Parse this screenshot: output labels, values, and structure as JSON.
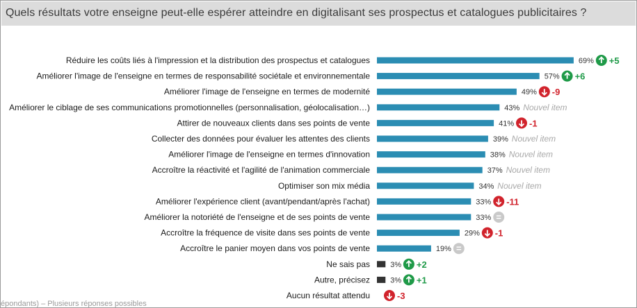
{
  "header": {
    "title": "Quels résultats votre enseigne peut-elle espérer atteindre en digitalisant ses prospectus et catalogues publicitaires ?"
  },
  "footnote": "épondants) – Plusieurs réponses possibles",
  "colors": {
    "bar_main": "#2b8db3",
    "bar_other": "#333333",
    "up": "#1f9a48",
    "down": "#d1232c",
    "equal": "#c9c9c9",
    "new_item_text": "#a8a8a8"
  },
  "chart_data": {
    "type": "bar",
    "orientation": "horizontal",
    "title": "Quels résultats votre enseigne peut-elle espérer atteindre en digitalisant ses prospectus et catalogues publicitaires ?",
    "xlim": [
      0,
      100
    ],
    "grid": false,
    "unit": "%",
    "categories": [
      "Réduire les coûts liés à l'impression et la distribution des prospectus et catalogues",
      "Améliorer l'image de l'enseigne en termes de responsabilité sociétale et environnementale",
      "Améliorer l'image de l'enseigne en termes de modernité",
      "Améliorer le ciblage de ses communications promotionnelles (personnalisation, géolocalisation…)",
      "Attirer de nouveaux clients dans ses points de vente",
      "Collecter des données pour évaluer les attentes des clients",
      "Améliorer l'image de l'enseigne en termes d'innovation",
      "Accroître la réactivité et l'agilité de l'animation commerciale",
      "Optimiser son mix média",
      "Améliorer l'expérience client (avant/pendant/après l'achat)",
      "Améliorer la notoriété de l'enseigne et de ses points de vente",
      "Accroître la fréquence de visite dans ses points de vente",
      "Accroître le panier moyen dans vos points de vente",
      "Ne sais pas",
      "Autre, précisez",
      "Aucun résultat attendu"
    ],
    "values": [
      69,
      57,
      49,
      43,
      41,
      39,
      38,
      37,
      34,
      33,
      33,
      29,
      19,
      3,
      3,
      null
    ],
    "value_labels": [
      "69%",
      "57%",
      "49%",
      "43%",
      "41%",
      "39%",
      "38%",
      "37%",
      "34%",
      "33%",
      "33%",
      "29%",
      "19%",
      "3%",
      "3%",
      ""
    ],
    "bar_group": [
      "main",
      "main",
      "main",
      "main",
      "main",
      "main",
      "main",
      "main",
      "main",
      "main",
      "main",
      "main",
      "main",
      "other",
      "other",
      "other"
    ],
    "evolution": [
      {
        "kind": "up",
        "label": "+5"
      },
      {
        "kind": "up",
        "label": "+6"
      },
      {
        "kind": "down",
        "label": "-9"
      },
      {
        "kind": "new",
        "label": "Nouvel item"
      },
      {
        "kind": "down",
        "label": "-1"
      },
      {
        "kind": "new",
        "label": "Nouvel item"
      },
      {
        "kind": "new",
        "label": "Nouvel item"
      },
      {
        "kind": "new",
        "label": "Nouvel item"
      },
      {
        "kind": "new",
        "label": "Nouvel item"
      },
      {
        "kind": "down",
        "label": "-11"
      },
      {
        "kind": "equal",
        "label": "="
      },
      {
        "kind": "down",
        "label": "-1"
      },
      {
        "kind": "equal",
        "label": "="
      },
      {
        "kind": "up",
        "label": "+2"
      },
      {
        "kind": "up",
        "label": "+1"
      },
      {
        "kind": "down",
        "label": "-3"
      }
    ]
  }
}
